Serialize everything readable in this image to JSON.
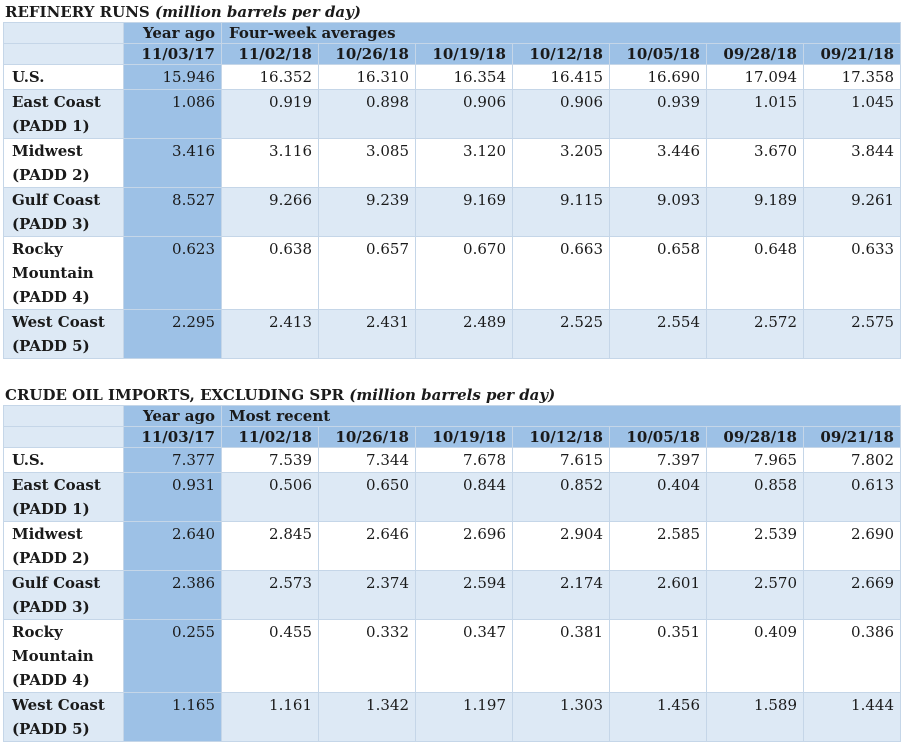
{
  "refinery": {
    "title": "REFINERY RUNS",
    "unit": "(million barrels per day)",
    "year_ago_label": "Year ago",
    "group_label": "Four-week averages",
    "dates": [
      "11/03/17",
      "11/02/18",
      "10/26/18",
      "10/19/18",
      "10/12/18",
      "10/05/18",
      "09/28/18",
      "09/21/18"
    ],
    "rows": [
      {
        "label": [
          "U.S."
        ],
        "values": [
          "15.946",
          "16.352",
          "16.310",
          "16.354",
          "16.415",
          "16.690",
          "17.094",
          "17.358"
        ]
      },
      {
        "label": [
          "East Coast",
          "(PADD 1)"
        ],
        "values": [
          "1.086",
          "0.919",
          "0.898",
          "0.906",
          "0.906",
          "0.939",
          "1.015",
          "1.045"
        ]
      },
      {
        "label": [
          "Midwest",
          "(PADD 2)"
        ],
        "values": [
          "3.416",
          "3.116",
          "3.085",
          "3.120",
          "3.205",
          "3.446",
          "3.670",
          "3.844"
        ]
      },
      {
        "label": [
          "Gulf Coast",
          "(PADD 3)"
        ],
        "values": [
          "8.527",
          "9.266",
          "9.239",
          "9.169",
          "9.115",
          "9.093",
          "9.189",
          "9.261"
        ]
      },
      {
        "label": [
          "Rocky",
          "Mountain",
          "(PADD 4)"
        ],
        "values": [
          "0.623",
          "0.638",
          "0.657",
          "0.670",
          "0.663",
          "0.658",
          "0.648",
          "0.633"
        ]
      },
      {
        "label": [
          "West Coast",
          "(PADD 5)"
        ],
        "values": [
          "2.295",
          "2.413",
          "2.431",
          "2.489",
          "2.525",
          "2.554",
          "2.572",
          "2.575"
        ]
      }
    ]
  },
  "imports": {
    "title": "CRUDE OIL IMPORTS, EXCLUDING SPR",
    "unit": "(million barrels per day)",
    "year_ago_label": "Year ago",
    "group_label": "Most recent",
    "dates": [
      "11/03/17",
      "11/02/18",
      "10/26/18",
      "10/19/18",
      "10/12/18",
      "10/05/18",
      "09/28/18",
      "09/21/18"
    ],
    "rows": [
      {
        "label": [
          "U.S."
        ],
        "values": [
          "7.377",
          "7.539",
          "7.344",
          "7.678",
          "7.615",
          "7.397",
          "7.965",
          "7.802"
        ]
      },
      {
        "label": [
          "East Coast",
          "(PADD 1)"
        ],
        "values": [
          "0.931",
          "0.506",
          "0.650",
          "0.844",
          "0.852",
          "0.404",
          "0.858",
          "0.613"
        ]
      },
      {
        "label": [
          "Midwest",
          "(PADD 2)"
        ],
        "values": [
          "2.640",
          "2.845",
          "2.646",
          "2.696",
          "2.904",
          "2.585",
          "2.539",
          "2.690"
        ]
      },
      {
        "label": [
          "Gulf Coast",
          "(PADD 3)"
        ],
        "values": [
          "2.386",
          "2.573",
          "2.374",
          "2.594",
          "2.174",
          "2.601",
          "2.570",
          "2.669"
        ]
      },
      {
        "label": [
          "Rocky",
          "Mountain",
          "(PADD 4)"
        ],
        "values": [
          "0.255",
          "0.455",
          "0.332",
          "0.347",
          "0.381",
          "0.351",
          "0.409",
          "0.386"
        ]
      },
      {
        "label": [
          "West Coast",
          "(PADD 5)"
        ],
        "values": [
          "1.165",
          "1.161",
          "1.342",
          "1.197",
          "1.303",
          "1.456",
          "1.589",
          "1.444"
        ]
      }
    ]
  },
  "colors": {
    "header_blue": "#9dc1e6",
    "row_light": "#dde9f5",
    "border": "#c5d6e8"
  }
}
